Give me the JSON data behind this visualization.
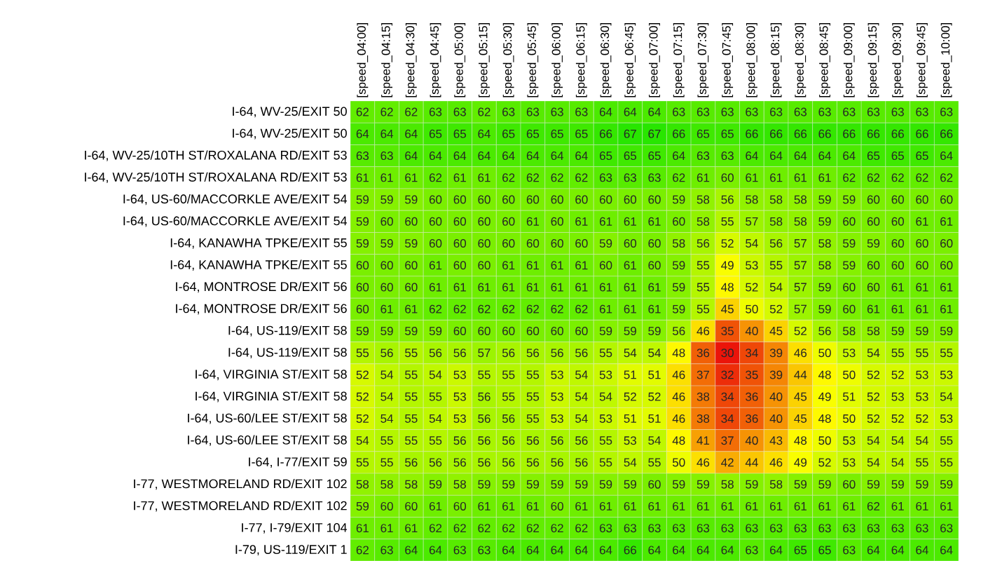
{
  "chart_data": {
    "type": "heatmap",
    "categories": [
      "[speed_04:00]",
      "[speed_04:15]",
      "[speed_04:30]",
      "[speed_04:45]",
      "[speed_05:00]",
      "[speed_05:15]",
      "[speed_05:30]",
      "[speed_05:45]",
      "[speed_06:00]",
      "[speed_06:15]",
      "[speed_06:30]",
      "[speed_06:45]",
      "[speed_07:00]",
      "[speed_07:15]",
      "[speed_07:30]",
      "[speed_07:45]",
      "[speed_08:00]",
      "[speed_08:15]",
      "[speed_08:30]",
      "[speed_08:45]",
      "[speed_09:00]",
      "[speed_09:15]",
      "[speed_09:30]",
      "[speed_09:45]",
      "[speed_10:00]"
    ],
    "y_categories": [
      "I-64, WV-25/EXIT 50",
      "I-64, WV-25/EXIT 50",
      "I-64, WV-25/10TH ST/ROXALANA RD/EXIT 53",
      "I-64, WV-25/10TH ST/ROXALANA RD/EXIT 53",
      "I-64, US-60/MACCORKLE AVE/EXIT 54",
      "I-64, US-60/MACCORKLE AVE/EXIT 54",
      "I-64, KANAWHA TPKE/EXIT 55",
      "I-64, KANAWHA TPKE/EXIT 55",
      "I-64, MONTROSE DR/EXIT 56",
      "I-64, MONTROSE DR/EXIT 56",
      "I-64, US-119/EXIT 58",
      "I-64, US-119/EXIT 58",
      "I-64, VIRGINIA ST/EXIT 58",
      "I-64, VIRGINIA ST/EXIT 58",
      "I-64, US-60/LEE ST/EXIT 58",
      "I-64, US-60/LEE ST/EXIT 58",
      "I-64, I-77/EXIT 59",
      "I-77, WESTMORELAND RD/EXIT 102",
      "I-77, WESTMORELAND RD/EXIT 102",
      "I-77, I-79/EXIT 104",
      "I-79, US-119/EXIT 1"
    ],
    "cells": [
      [
        62,
        62,
        62,
        63,
        63,
        62,
        63,
        63,
        63,
        63,
        64,
        64,
        64,
        63,
        63,
        63,
        63,
        63,
        63,
        63,
        63,
        63,
        63,
        63,
        63
      ],
      [
        64,
        64,
        64,
        65,
        65,
        64,
        65,
        65,
        65,
        65,
        66,
        67,
        67,
        66,
        65,
        65,
        66,
        66,
        66,
        66,
        66,
        66,
        66,
        66,
        66
      ],
      [
        63,
        63,
        64,
        64,
        64,
        64,
        64,
        64,
        64,
        64,
        65,
        65,
        65,
        64,
        63,
        63,
        64,
        64,
        64,
        64,
        64,
        65,
        65,
        65,
        64
      ],
      [
        61,
        61,
        61,
        62,
        61,
        61,
        62,
        62,
        62,
        62,
        63,
        63,
        63,
        62,
        61,
        60,
        61,
        61,
        61,
        61,
        62,
        62,
        62,
        62,
        62
      ],
      [
        59,
        59,
        59,
        60,
        60,
        60,
        60,
        60,
        60,
        60,
        60,
        60,
        60,
        59,
        58,
        56,
        58,
        58,
        58,
        59,
        59,
        60,
        60,
        60,
        60
      ],
      [
        59,
        60,
        60,
        60,
        60,
        60,
        60,
        61,
        60,
        61,
        61,
        61,
        61,
        60,
        58,
        55,
        57,
        58,
        58,
        59,
        60,
        60,
        60,
        61,
        61
      ],
      [
        59,
        59,
        59,
        60,
        60,
        60,
        60,
        60,
        60,
        60,
        59,
        60,
        60,
        58,
        56,
        52,
        54,
        56,
        57,
        58,
        59,
        59,
        60,
        60,
        60
      ],
      [
        60,
        60,
        60,
        61,
        60,
        60,
        61,
        61,
        61,
        61,
        60,
        61,
        60,
        59,
        55,
        49,
        53,
        55,
        57,
        58,
        59,
        60,
        60,
        60,
        60
      ],
      [
        60,
        60,
        60,
        61,
        61,
        61,
        61,
        61,
        61,
        61,
        61,
        61,
        61,
        59,
        55,
        48,
        52,
        54,
        57,
        59,
        60,
        60,
        61,
        61,
        61
      ],
      [
        60,
        61,
        61,
        62,
        62,
        62,
        62,
        62,
        62,
        62,
        61,
        61,
        61,
        59,
        55,
        45,
        50,
        52,
        57,
        59,
        60,
        61,
        61,
        61,
        61
      ],
      [
        59,
        59,
        59,
        59,
        60,
        60,
        60,
        60,
        60,
        60,
        59,
        59,
        59,
        56,
        46,
        35,
        40,
        45,
        52,
        56,
        58,
        58,
        59,
        59,
        59
      ],
      [
        55,
        56,
        55,
        56,
        56,
        57,
        56,
        56,
        56,
        56,
        55,
        54,
        54,
        48,
        36,
        30,
        34,
        39,
        46,
        50,
        53,
        54,
        55,
        55,
        55
      ],
      [
        52,
        54,
        55,
        54,
        53,
        55,
        55,
        55,
        53,
        54,
        53,
        51,
        51,
        46,
        37,
        32,
        35,
        39,
        44,
        48,
        50,
        52,
        52,
        53,
        53
      ],
      [
        52,
        54,
        55,
        55,
        53,
        56,
        55,
        55,
        53,
        54,
        54,
        52,
        52,
        46,
        38,
        34,
        36,
        40,
        45,
        49,
        51,
        52,
        53,
        53,
        54
      ],
      [
        52,
        54,
        55,
        54,
        53,
        56,
        56,
        55,
        53,
        54,
        53,
        51,
        51,
        46,
        38,
        34,
        36,
        40,
        45,
        48,
        50,
        52,
        52,
        52,
        53
      ],
      [
        54,
        55,
        55,
        55,
        56,
        56,
        56,
        56,
        56,
        56,
        55,
        53,
        54,
        48,
        41,
        37,
        40,
        43,
        48,
        50,
        53,
        54,
        54,
        54,
        55
      ],
      [
        55,
        55,
        56,
        56,
        56,
        56,
        56,
        56,
        56,
        56,
        55,
        54,
        55,
        50,
        46,
        42,
        44,
        46,
        49,
        52,
        53,
        54,
        54,
        55,
        55
      ],
      [
        58,
        58,
        58,
        59,
        58,
        59,
        59,
        59,
        59,
        59,
        59,
        59,
        60,
        59,
        59,
        58,
        59,
        58,
        59,
        59,
        60,
        59,
        59,
        59,
        59
      ],
      [
        59,
        60,
        60,
        61,
        60,
        61,
        61,
        61,
        60,
        61,
        61,
        61,
        61,
        61,
        61,
        61,
        61,
        61,
        61,
        61,
        61,
        62,
        61,
        61,
        61
      ],
      [
        61,
        61,
        61,
        62,
        62,
        62,
        62,
        62,
        62,
        62,
        63,
        63,
        63,
        63,
        63,
        63,
        63,
        63,
        63,
        63,
        63,
        63,
        63,
        63,
        63
      ],
      [
        62,
        63,
        64,
        64,
        63,
        63,
        64,
        64,
        64,
        64,
        64,
        66,
        64,
        64,
        64,
        64,
        63,
        64,
        65,
        65,
        63,
        64,
        64,
        64,
        64
      ]
    ],
    "data_labels": true
  }
}
